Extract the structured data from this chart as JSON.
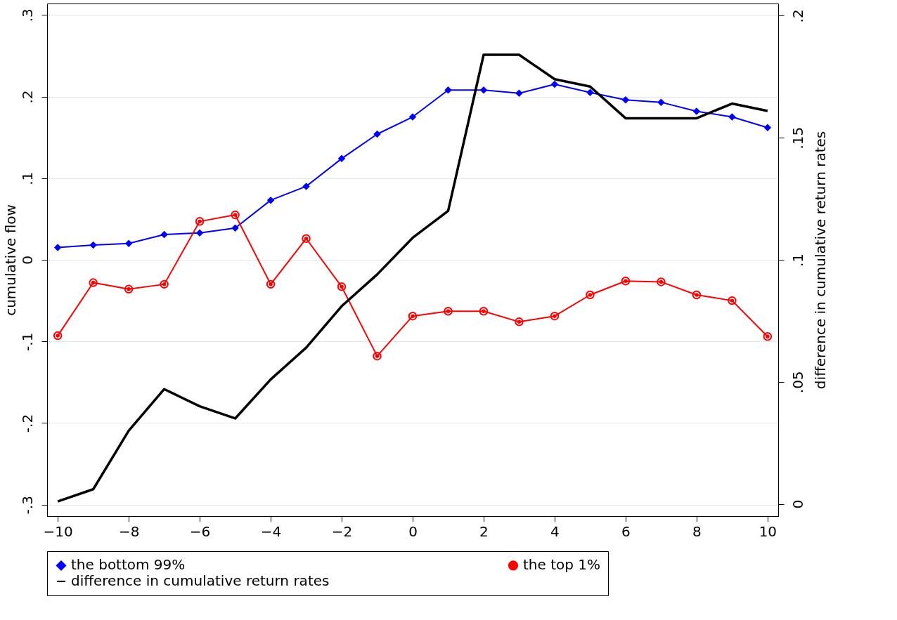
{
  "chart_data": {
    "type": "line",
    "xlabel": null,
    "ylabel": "cumulative flow",
    "y2label": "difference in cumulative return rates",
    "x": [
      -10,
      -9,
      -8,
      -7,
      -6,
      -5,
      -4,
      -3,
      -2,
      -1,
      0,
      1,
      2,
      3,
      4,
      5,
      6,
      7,
      8,
      9,
      10
    ],
    "xlim": [
      -10.3,
      10.3
    ],
    "xticks": [
      -10,
      -8,
      -6,
      -4,
      -2,
      0,
      2,
      4,
      6,
      8,
      10
    ],
    "ylim": [
      -0.314,
      0.314
    ],
    "yticks": [
      {
        "value": -0.3,
        "label": "-.3"
      },
      {
        "value": -0.2,
        "label": "-.2"
      },
      {
        "value": -0.1,
        "label": "-.1"
      },
      0,
      {
        "value": 0.1,
        "label": ".1"
      },
      {
        "value": 0.2,
        "label": ".2"
      },
      {
        "value": 0.3,
        "label": ".3"
      }
    ],
    "y2lim": [
      -0.005,
      0.205
    ],
    "y2ticks": [
      0,
      {
        "value": 0.05,
        "label": ".05"
      },
      {
        "value": 0.1,
        "label": ".1"
      },
      {
        "value": 0.15,
        "label": ".15"
      },
      {
        "value": 0.2,
        "label": ".2"
      }
    ],
    "grid": "y",
    "legend": "bottom",
    "series": [
      {
        "name": "the bottom 99%",
        "color": "#0000ff",
        "marker": "diamond",
        "values": [
          0.015,
          0.018,
          0.02,
          0.031,
          0.033,
          0.039,
          0.073,
          0.09,
          0.124,
          0.154,
          0.175,
          0.208,
          0.208,
          0.204,
          0.215,
          0.205,
          0.196,
          0.193,
          0.182,
          0.175,
          0.162
        ]
      },
      {
        "name": "the top 1%",
        "color": "#ff0000",
        "marker": "circle",
        "values": [
          -0.093,
          -0.028,
          -0.036,
          -0.03,
          0.047,
          0.055,
          -0.03,
          0.026,
          -0.033,
          -0.118,
          -0.069,
          -0.063,
          -0.063,
          -0.076,
          -0.069,
          -0.043,
          -0.026,
          -0.027,
          -0.043,
          -0.05,
          -0.094
        ]
      },
      {
        "name": "difference in cumulative return rates",
        "color": "#000000",
        "marker": "none",
        "axis": "y2",
        "values": [
          0.001,
          0.006,
          0.03,
          0.047,
          0.04,
          0.035,
          0.051,
          0.064,
          0.081,
          0.094,
          0.109,
          0.12,
          0.184,
          0.184,
          0.174,
          0.171,
          0.158,
          0.158,
          0.158,
          0.164,
          0.161
        ]
      }
    ]
  }
}
